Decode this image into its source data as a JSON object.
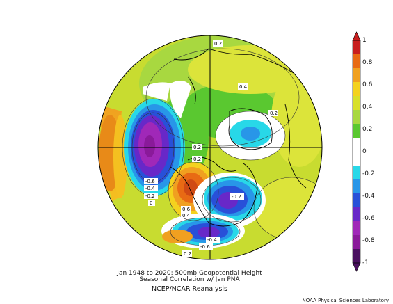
{
  "title_line1": "Jan 1948 to 2020: 500mb Geopotential Height",
  "title_line2": "Seasonal Correlation w/ Jan PNA",
  "title_line3": "NCEP/NCAR Reanalysis",
  "credit": "NOAA Physical Sciences Laboratory",
  "colorbar": {
    "labels": [
      "1",
      "0.8",
      "0.6",
      "0.4",
      "0.2",
      "0",
      "-0.2",
      "-0.4",
      "-0.6",
      "-0.8",
      "-1"
    ],
    "colors": [
      "#c81e1e",
      "#e86a14",
      "#f0a020",
      "#f4d21e",
      "#d8e02a",
      "#a8d840",
      "#5ac830",
      "#ffffff",
      "#ffffff",
      "#28d8e8",
      "#2896e8",
      "#2850d8",
      "#6828c8",
      "#a028b8",
      "#8a1a9a",
      "#4a1060"
    ]
  },
  "contour_labels": [
    {
      "text": "0.2"
    },
    {
      "text": "0.4"
    },
    {
      "text": "0.2"
    },
    {
      "text": "0.2"
    },
    {
      "text": "0.2"
    },
    {
      "text": "-0.6"
    },
    {
      "text": "-0.4"
    },
    {
      "text": "-0.2"
    },
    {
      "text": "0"
    },
    {
      "text": "-0.2"
    },
    {
      "text": "0.6"
    },
    {
      "text": "0.4"
    },
    {
      "text": "-0.4"
    },
    {
      "text": "-0.6"
    },
    {
      "text": "0.2"
    }
  ]
}
